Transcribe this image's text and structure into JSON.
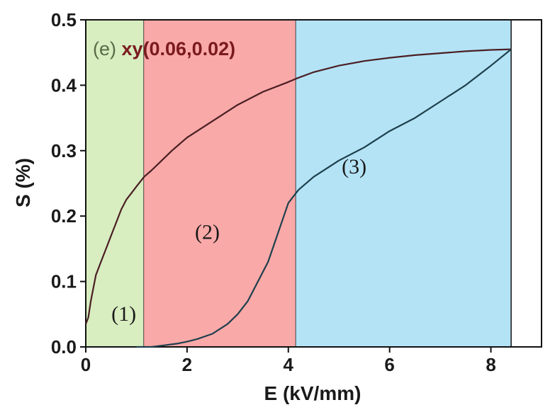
{
  "chart_data": {
    "type": "line",
    "title": "",
    "panel_label": {
      "prefix": "(e) ",
      "text": "xy(0.06,0.02)"
    },
    "xlabel": "E (kV/mm)",
    "ylabel": "S (%)",
    "xlim": [
      0,
      9
    ],
    "ylim": [
      0,
      0.5
    ],
    "x_ticks": [
      0,
      2,
      4,
      6,
      8
    ],
    "x_tick_labels": [
      "0",
      "2",
      "4",
      "6",
      "8"
    ],
    "y_ticks": [
      0.0,
      0.1,
      0.2,
      0.3,
      0.4,
      0.5
    ],
    "y_tick_labels": [
      "0.0",
      "0.1",
      "0.2",
      "0.3",
      "0.4",
      "0.5"
    ],
    "regions": [
      {
        "label": "(1)",
        "x_range": [
          0,
          1.15
        ],
        "color": "#d8edc0",
        "label_pos": [
          0.75,
          0.04
        ]
      },
      {
        "label": "(2)",
        "x_range": [
          1.15,
          4.15
        ],
        "color": "#f9a9a8",
        "label_pos": [
          2.4,
          0.165
        ]
      },
      {
        "label": "(3)",
        "x_range": [
          4.15,
          8.4
        ],
        "color": "#b4e3f6",
        "label_pos": [
          5.3,
          0.265
        ]
      }
    ],
    "series": [
      {
        "color": "#4a1f23",
        "x": [
          0.0,
          0.05,
          0.1,
          0.15,
          0.2,
          0.3,
          0.4,
          0.5,
          0.6,
          0.7,
          0.8,
          0.9,
          1.0,
          1.1,
          1.15,
          1.3,
          1.5,
          1.7,
          2.0,
          2.5,
          3.0,
          3.5,
          4.0,
          4.15,
          4.5,
          5.0,
          5.5,
          6.0,
          6.5,
          7.0,
          7.5,
          8.0,
          8.4
        ],
        "y": [
          0.035,
          0.045,
          0.07,
          0.09,
          0.11,
          0.13,
          0.15,
          0.17,
          0.19,
          0.21,
          0.225,
          0.235,
          0.245,
          0.255,
          0.26,
          0.27,
          0.285,
          0.3,
          0.32,
          0.345,
          0.37,
          0.39,
          0.405,
          0.41,
          0.42,
          0.43,
          0.437,
          0.442,
          0.446,
          0.449,
          0.452,
          0.454,
          0.455
        ]
      },
      {
        "color": "#1d3f4c",
        "x": [
          8.4,
          8.0,
          7.5,
          7.0,
          6.5,
          6.0,
          5.5,
          5.0,
          4.5,
          4.2,
          4.0,
          3.8,
          3.6,
          3.4,
          3.2,
          3.0,
          2.8,
          2.5,
          2.2,
          2.0,
          1.8,
          1.5,
          1.3,
          1.15,
          1.0
        ],
        "y": [
          0.455,
          0.43,
          0.4,
          0.375,
          0.35,
          0.33,
          0.305,
          0.285,
          0.26,
          0.24,
          0.22,
          0.175,
          0.13,
          0.1,
          0.07,
          0.05,
          0.035,
          0.02,
          0.012,
          0.008,
          0.005,
          0.002,
          0.0,
          0.0,
          0.0
        ]
      }
    ]
  }
}
